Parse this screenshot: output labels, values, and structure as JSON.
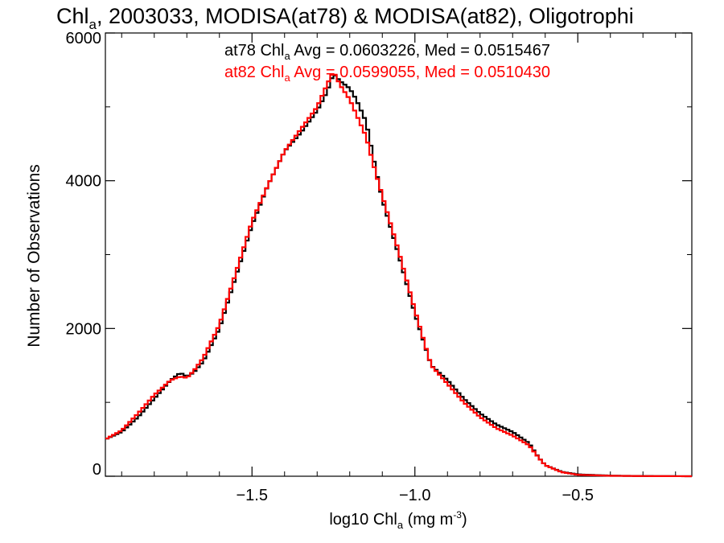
{
  "chart_data": {
    "type": "line",
    "step": true,
    "title": {
      "prefix": "Chl",
      "prefix_sub": "a",
      "rest": ", 2003033, MODISA(at78) & MODISA(at82), Oligotrophi"
    },
    "xlabel": {
      "prefix": "log10 Chl",
      "prefix_sub": "a",
      "mid": " (mg m",
      "sup": "-3",
      "suffix": ")"
    },
    "ylabel": "Number of Observations",
    "xlim": [
      -1.95,
      -0.15
    ],
    "ylim": [
      0,
      6000
    ],
    "x_ticks": [
      -1.5,
      -1.0,
      -0.5
    ],
    "x_tick_labels": [
      "−1.5",
      "−1.0",
      "−0.5"
    ],
    "y_ticks": [
      0,
      2000,
      4000,
      6000
    ],
    "y_tick_labels": [
      "0",
      "2000",
      "4000",
      "6000"
    ],
    "grid": false,
    "annotations": [
      {
        "color": "#000000",
        "label": "at78 Chl",
        "label_sub": "a",
        "text": " Avg = 0.0603226, Med = 0.0515467"
      },
      {
        "color": "#ff0000",
        "label": "at82 Chl",
        "label_sub": "a",
        "text": " Avg = 0.0599055, Med = 0.0510430"
      }
    ],
    "series": [
      {
        "color": "#000000",
        "x": [
          -1.95,
          -1.9,
          -1.85,
          -1.8,
          -1.75,
          -1.72,
          -1.7,
          -1.68,
          -1.65,
          -1.6,
          -1.55,
          -1.5,
          -1.45,
          -1.4,
          -1.35,
          -1.3,
          -1.27,
          -1.25,
          -1.23,
          -1.2,
          -1.18,
          -1.15,
          -1.12,
          -1.1,
          -1.05,
          -1.0,
          -0.95,
          -0.9,
          -0.85,
          -0.8,
          -0.75,
          -0.7,
          -0.65,
          -0.62,
          -0.6,
          -0.55,
          -0.5,
          -0.4,
          -0.3,
          -0.15
        ],
        "y": [
          500,
          600,
          800,
          1050,
          1300,
          1400,
          1350,
          1400,
          1550,
          2000,
          2700,
          3400,
          3950,
          4400,
          4650,
          4950,
          5200,
          5450,
          5350,
          5250,
          5100,
          4800,
          4150,
          3750,
          3000,
          2200,
          1500,
          1300,
          1050,
          850,
          700,
          600,
          450,
          250,
          150,
          60,
          25,
          8,
          3,
          0
        ]
      },
      {
        "color": "#ff0000",
        "x": [
          -1.95,
          -1.9,
          -1.85,
          -1.8,
          -1.75,
          -1.72,
          -1.7,
          -1.68,
          -1.65,
          -1.6,
          -1.55,
          -1.5,
          -1.45,
          -1.4,
          -1.35,
          -1.3,
          -1.27,
          -1.25,
          -1.23,
          -1.2,
          -1.18,
          -1.15,
          -1.12,
          -1.1,
          -1.05,
          -1.0,
          -0.95,
          -0.9,
          -0.85,
          -0.8,
          -0.75,
          -0.7,
          -0.65,
          -0.62,
          -0.6,
          -0.55,
          -0.5,
          -0.4,
          -0.3,
          -0.15
        ],
        "y": [
          500,
          620,
          850,
          1100,
          1300,
          1350,
          1330,
          1420,
          1600,
          2050,
          2750,
          3450,
          3950,
          4400,
          4700,
          5000,
          5300,
          5480,
          5300,
          5100,
          4900,
          4600,
          4100,
          3800,
          3050,
          2250,
          1500,
          1250,
          1000,
          800,
          650,
          550,
          420,
          250,
          150,
          55,
          20,
          6,
          2,
          0
        ]
      }
    ]
  }
}
